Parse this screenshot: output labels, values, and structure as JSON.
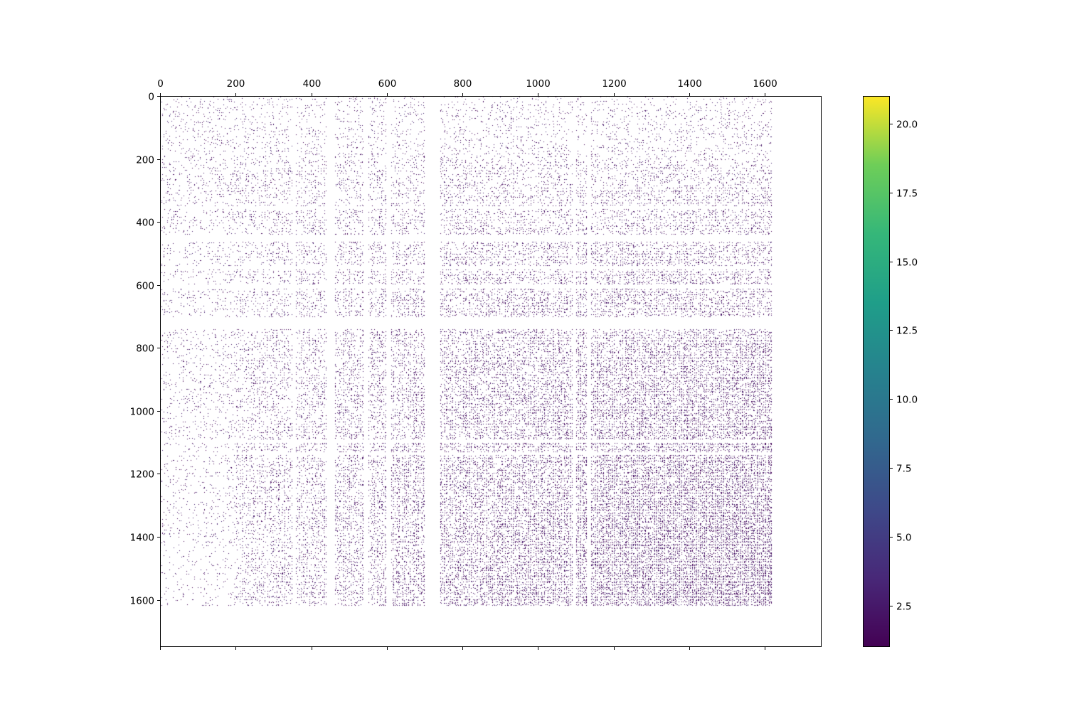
{
  "chart_data": {
    "type": "heatmap",
    "title": "",
    "xlabel": "",
    "ylabel": "",
    "matrix_rows": 1750,
    "matrix_cols": 1750,
    "data_extent": 1620,
    "xlim": [
      0,
      1750
    ],
    "ylim": [
      1750,
      0
    ],
    "x_ticks": [
      0,
      200,
      400,
      600,
      800,
      1000,
      1200,
      1400,
      1600
    ],
    "y_ticks": [
      0,
      200,
      400,
      600,
      800,
      1000,
      1200,
      1400,
      1600
    ],
    "x_tick_labels": [
      "0",
      "200",
      "400",
      "600",
      "800",
      "1000",
      "1200",
      "1400",
      "1600"
    ],
    "y_tick_labels": [
      "0",
      "200",
      "400",
      "600",
      "800",
      "1000",
      "1200",
      "1400",
      "1600"
    ],
    "x_ticks_position": "top",
    "empty_blocks": [
      [
        700,
        740
      ],
      [
        1130,
        1140
      ],
      [
        1090,
        1100
      ],
      [
        600,
        610
      ],
      [
        540,
        550
      ],
      [
        440,
        460
      ],
      [
        350,
        360
      ]
    ],
    "colorbar": {
      "colormap": "viridis",
      "min": 1,
      "max": 21,
      "ticks": [
        2.5,
        5.0,
        7.5,
        10.0,
        12.5,
        15.0,
        17.5,
        20.0
      ],
      "tick_labels": [
        "2.5",
        "5.0",
        "7.5",
        "10.0",
        "12.5",
        "15.0",
        "17.5",
        "20.0"
      ]
    },
    "grid": false,
    "legend": "none"
  }
}
